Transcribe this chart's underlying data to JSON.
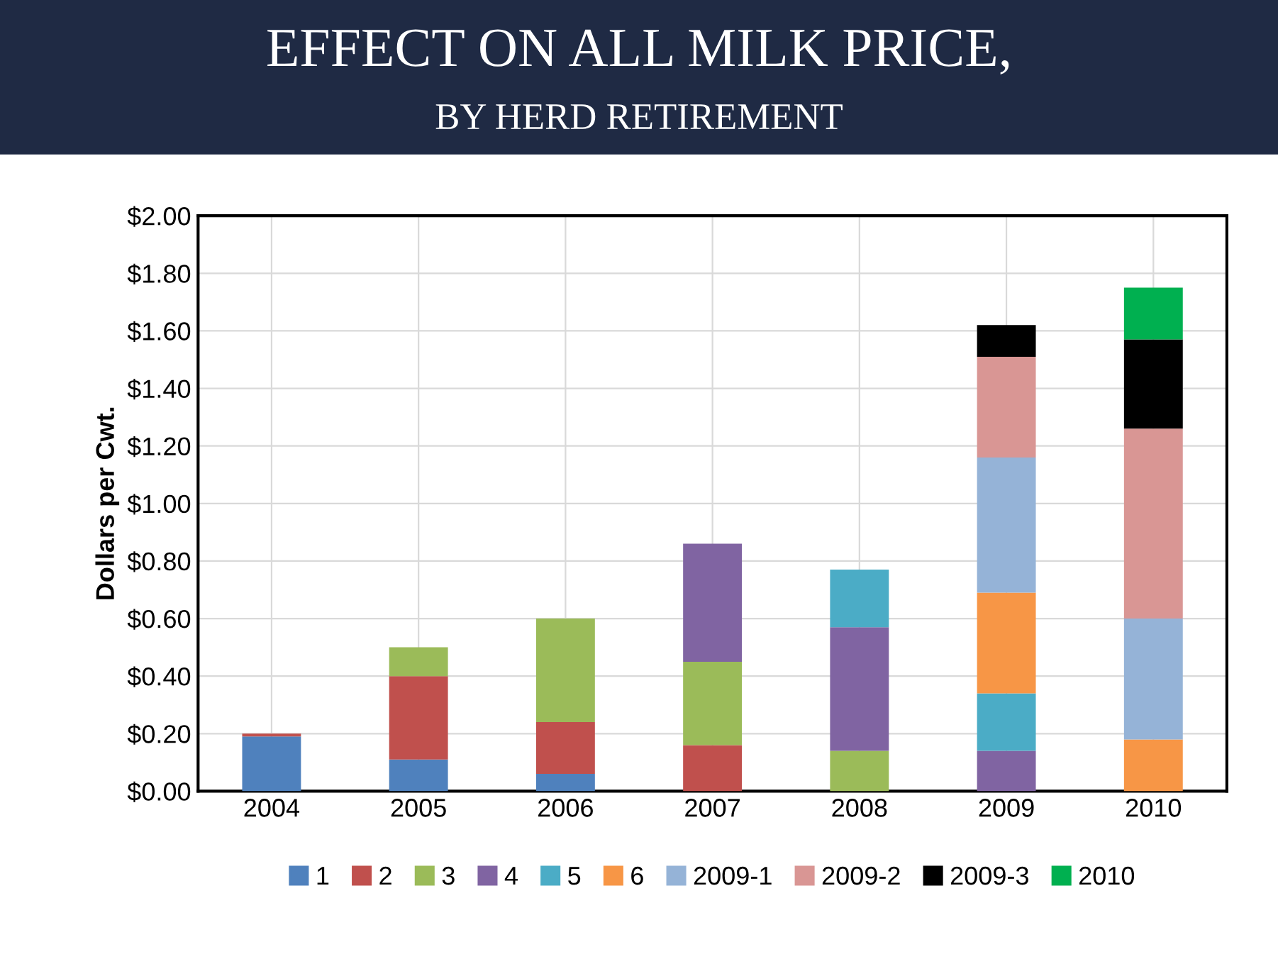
{
  "chart_data": {
    "type": "bar",
    "stacked": true,
    "title": "EFFECT ON ALL MILK PRICE,",
    "subtitle": "BY HERD RETIREMENT",
    "ylabel": "Dollars per Cwt.",
    "categories": [
      "2004",
      "2005",
      "2006",
      "2007",
      "2008",
      "2009",
      "2010"
    ],
    "series": [
      {
        "name": "1",
        "color": "#4f81bd",
        "values": [
          0.19,
          0.11,
          0.06,
          null,
          null,
          null,
          null
        ]
      },
      {
        "name": "2",
        "color": "#c0504d",
        "values": [
          0.01,
          0.29,
          0.18,
          0.16,
          null,
          null,
          null
        ]
      },
      {
        "name": "3",
        "color": "#9bbb59",
        "values": [
          null,
          0.1,
          0.36,
          0.29,
          0.14,
          null,
          null
        ]
      },
      {
        "name": "4",
        "color": "#8064a2",
        "values": [
          null,
          null,
          null,
          0.41,
          0.43,
          0.14,
          null
        ]
      },
      {
        "name": "5",
        "color": "#4bacc6",
        "values": [
          null,
          null,
          null,
          null,
          0.2,
          0.2,
          null
        ]
      },
      {
        "name": "6",
        "color": "#f79646",
        "values": [
          null,
          null,
          null,
          null,
          null,
          0.35,
          0.18
        ]
      },
      {
        "name": "2009-1",
        "color": "#95b3d7",
        "values": [
          null,
          null,
          null,
          null,
          null,
          0.47,
          0.42
        ]
      },
      {
        "name": "2009-2",
        "color": "#d99694",
        "values": [
          null,
          null,
          null,
          null,
          null,
          0.35,
          0.66
        ]
      },
      {
        "name": "2009-3",
        "color": "#000000",
        "values": [
          null,
          null,
          null,
          null,
          null,
          0.11,
          0.31
        ]
      },
      {
        "name": "2010",
        "color": "#00b050",
        "values": [
          null,
          null,
          null,
          null,
          null,
          null,
          0.18
        ]
      }
    ],
    "ylim": [
      0,
      2
    ],
    "yticks": [
      {
        "value": 0,
        "label": "$0.00"
      },
      {
        "value": 0.2,
        "label": "$0.20"
      },
      {
        "value": 0.4,
        "label": "$0.40"
      },
      {
        "value": 0.6,
        "label": "$0.60"
      },
      {
        "value": 0.8,
        "label": "$0.80"
      },
      {
        "value": 1.0,
        "label": "$1.00"
      },
      {
        "value": 1.2,
        "label": "$1.20"
      },
      {
        "value": 1.4,
        "label": "$1.40"
      },
      {
        "value": 1.6,
        "label": "$1.60"
      },
      {
        "value": 1.8,
        "label": "$1.80"
      },
      {
        "value": 2.0,
        "label": "$2.00"
      }
    ],
    "grid": true,
    "legend": "bottom"
  }
}
